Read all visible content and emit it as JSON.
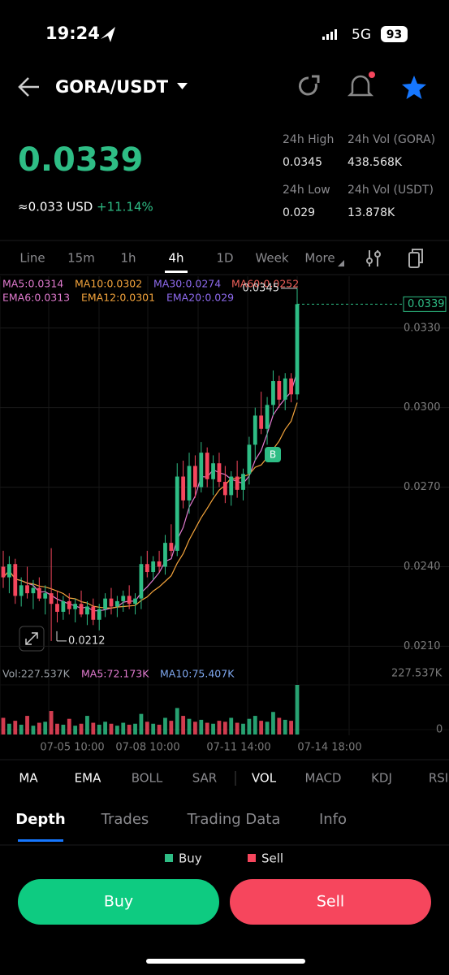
{
  "status_bar": {
    "time": "19:24",
    "network": "5G",
    "battery": "93"
  },
  "header": {
    "pair": "GORA/USDT"
  },
  "ticker": {
    "price": "0.0339",
    "usd": "≈0.033 USD",
    "change": "+11.14%",
    "stats": [
      {
        "label": "24h High",
        "value": "0.0345"
      },
      {
        "label": "24h Vol (GORA)",
        "value": "438.568K"
      },
      {
        "label": "24h Low",
        "value": "0.029"
      },
      {
        "label": "24h Vol  (USDT)",
        "value": "13.878K"
      }
    ]
  },
  "intervals": {
    "items": [
      "Line",
      "15m",
      "1h",
      "4h",
      "1D",
      "Week",
      "More"
    ],
    "selected": 3
  },
  "chart": {
    "type": "candlestick",
    "up_color": "#2ebd85",
    "down_color": "#f6465d",
    "ma_labels": [
      {
        "text": "MA5:0.0314",
        "color": "#e27bd0"
      },
      {
        "text": "MA10:0.0302",
        "color": "#f5a53c"
      },
      {
        "text": "MA30:0.0274",
        "color": "#8f6bf0"
      },
      {
        "text": "MA60:0.0252",
        "color": "#f0605a"
      }
    ],
    "ema_labels": [
      {
        "text": "EMA6:0.0313",
        "color": "#e27bd0"
      },
      {
        "text": "EMA12:0.0301",
        "color": "#f5a53c"
      },
      {
        "text": "EMA20:0.029",
        "color": "#8f6bf0"
      }
    ],
    "ylim": [
      0.0204,
      0.0348
    ],
    "yticks": [
      {
        "value": 0.033,
        "label": "0.0330"
      },
      {
        "value": 0.03,
        "label": "0.0300"
      },
      {
        "value": 0.027,
        "label": "0.0270"
      },
      {
        "value": 0.024,
        "label": "0.0240"
      },
      {
        "value": 0.021,
        "label": "0.0210"
      }
    ],
    "last_price": 0.0339,
    "high_marker": 0.0345,
    "low_marker": 0.0212,
    "trade_marker": "B",
    "x_labels": [
      "07-05 10:00",
      "07-08 10:00",
      "07-11 14:00",
      "07-14 18:00"
    ],
    "open": [
      0.024,
      0.0236,
      0.0241,
      0.0229,
      0.0233,
      0.023,
      0.0232,
      0.0228,
      0.023,
      0.0226,
      0.0223,
      0.0227,
      0.0224,
      0.0226,
      0.0222,
      0.0225,
      0.022,
      0.0224,
      0.0228,
      0.0225,
      0.0227,
      0.0229,
      0.0226,
      0.0228,
      0.0241,
      0.0238,
      0.0242,
      0.024,
      0.0249,
      0.0246,
      0.0274,
      0.0265,
      0.0278,
      0.027,
      0.0283,
      0.0273,
      0.0279,
      0.0272,
      0.0267,
      0.0274,
      0.0269,
      0.0275,
      0.0286,
      0.0297,
      0.0292,
      0.0301,
      0.031,
      0.0303,
      0.0311,
      0.0305
    ],
    "high": [
      0.0246,
      0.0244,
      0.0243,
      0.0236,
      0.024,
      0.0235,
      0.0236,
      0.0233,
      0.0247,
      0.0231,
      0.0229,
      0.023,
      0.0228,
      0.0231,
      0.0227,
      0.0228,
      0.0226,
      0.023,
      0.0232,
      0.0229,
      0.0231,
      0.0233,
      0.023,
      0.0244,
      0.0246,
      0.0244,
      0.0246,
      0.0252,
      0.0256,
      0.0279,
      0.028,
      0.0283,
      0.0282,
      0.0287,
      0.0285,
      0.0282,
      0.0283,
      0.0278,
      0.0276,
      0.028,
      0.0277,
      0.0289,
      0.03,
      0.0306,
      0.0304,
      0.0314,
      0.0312,
      0.0313,
      0.0313,
      0.0345
    ],
    "low": [
      0.0232,
      0.023,
      0.0226,
      0.0225,
      0.0228,
      0.0224,
      0.0227,
      0.0222,
      0.0212,
      0.0219,
      0.022,
      0.0222,
      0.0219,
      0.0221,
      0.0218,
      0.0218,
      0.0216,
      0.0221,
      0.0222,
      0.0221,
      0.0223,
      0.0224,
      0.0222,
      0.0224,
      0.0236,
      0.0235,
      0.0238,
      0.0237,
      0.0244,
      0.0244,
      0.0262,
      0.026,
      0.0266,
      0.0268,
      0.027,
      0.0267,
      0.027,
      0.0264,
      0.0263,
      0.0266,
      0.0265,
      0.0271,
      0.028,
      0.029,
      0.0286,
      0.0297,
      0.03,
      0.0299,
      0.0302,
      0.0303
    ],
    "close": [
      0.0236,
      0.0241,
      0.0229,
      0.0233,
      0.023,
      0.0232,
      0.0228,
      0.023,
      0.0226,
      0.0223,
      0.0227,
      0.0224,
      0.0226,
      0.0222,
      0.0225,
      0.022,
      0.0224,
      0.0228,
      0.0225,
      0.0227,
      0.0229,
      0.0226,
      0.0228,
      0.0241,
      0.0238,
      0.0242,
      0.024,
      0.0249,
      0.0246,
      0.0274,
      0.0265,
      0.0278,
      0.027,
      0.0283,
      0.0273,
      0.0279,
      0.0272,
      0.0267,
      0.0274,
      0.0269,
      0.0275,
      0.0286,
      0.0297,
      0.0292,
      0.0301,
      0.031,
      0.0303,
      0.0311,
      0.0305,
      0.0339
    ]
  },
  "volume": {
    "labels": [
      {
        "text": "Vol:227.537K",
        "color": "#9aa0a6"
      },
      {
        "text": "MA5:72.173K",
        "color": "#e27bd0"
      },
      {
        "text": "MA10:75.407K",
        "color": "#7fa8f0"
      }
    ],
    "ylim": [
      0,
      227.537
    ],
    "yticks": [
      {
        "value": 227.537,
        "label": "227.537K"
      },
      0
    ],
    "values": [
      60,
      30,
      45,
      25,
      70,
      20,
      35,
      40,
      95,
      30,
      25,
      55,
      20,
      30,
      70,
      35,
      25,
      40,
      30,
      20,
      35,
      25,
      30,
      80,
      40,
      30,
      25,
      60,
      45,
      110,
      70,
      55,
      40,
      50,
      35,
      30,
      45,
      40,
      60,
      35,
      30,
      55,
      70,
      45,
      40,
      90,
      60,
      50,
      45,
      227.537
    ]
  },
  "indicators": {
    "items": [
      "MA",
      "EMA",
      "BOLL",
      "SAR",
      "VOL",
      "MACD",
      "KDJ",
      "RSI"
    ],
    "selected": 4
  },
  "tabs": {
    "items": [
      "Depth",
      "Trades",
      "Trading Data",
      "Info"
    ],
    "selected": 0
  },
  "depth_legend": [
    {
      "text": "Buy",
      "color": "#2ebd85"
    },
    {
      "text": "Sell",
      "color": "#f6465d"
    }
  ],
  "buttons": [
    {
      "text": "Buy",
      "color": "#0ecb81"
    },
    {
      "text": "Sell",
      "color": "#f6465d"
    }
  ]
}
